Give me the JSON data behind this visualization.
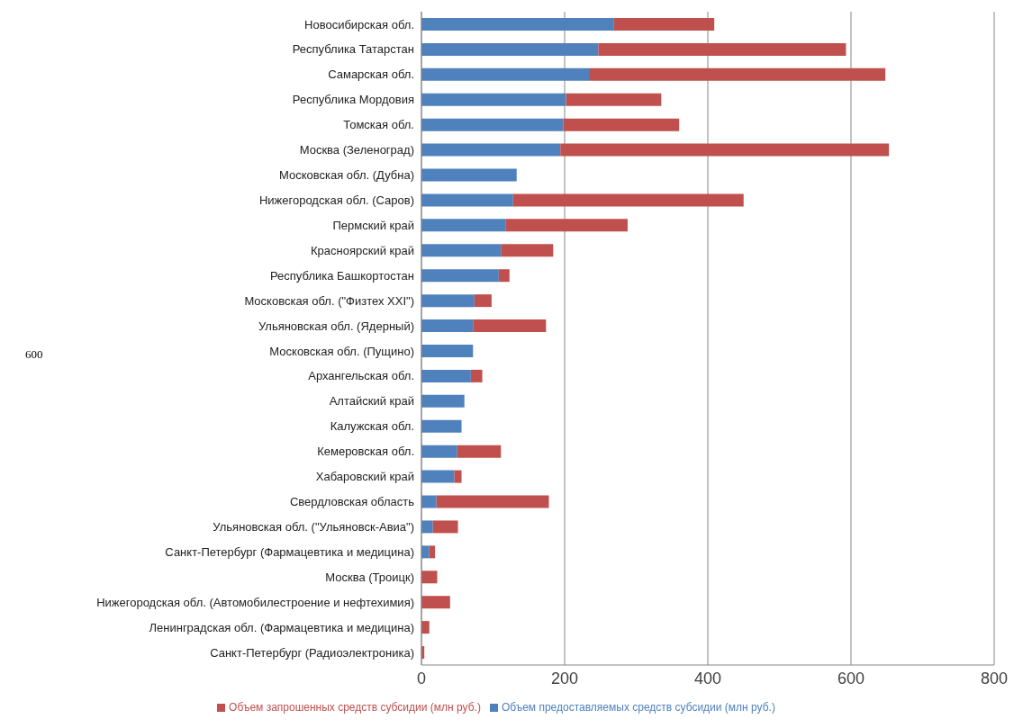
{
  "chart_data": {
    "type": "bar",
    "orientation": "horizontal",
    "stacked": true,
    "categories": [
      "Новосибирская обл.",
      "Республика Татарстан",
      "Самарская обл.",
      "Республика Мордовия",
      "Томская обл.",
      "Москва (Зеленоград)",
      "Московская обл. (Дубна)",
      "Нижегородская обл. (Саров)",
      "Пермский край",
      "Красноярский край",
      "Республика Башкортостан",
      "Московская обл. (\"Физтех XXI\")",
      "Ульяновская обл. (Ядерный)",
      "Московская обл. (Пущино)",
      "Архангельская обл.",
      "Алтайский край",
      "Калужская обл.",
      "Кемеровская обл.",
      "Хабаровский край",
      "Свердловская область",
      "Ульяновская обл. (\"Ульяновск-Авиа\")",
      "Санкт-Петербург (Фармацевтика и медицина)",
      "Москва (Троицк)",
      "Нижегородская обл. (Автомобилестроение и нефтехимия)",
      "Ленинградская обл. (Фармацевтика и медицина)",
      "Санкт-Петербург (Радиоэлектроника)"
    ],
    "series": [
      {
        "name": "Объем предоставляемых средств субсидии (млн руб.)",
        "color": "#4f81bd",
        "values": [
          269,
          247,
          234,
          202,
          198,
          194,
          133,
          128,
          118,
          111,
          108,
          74,
          72,
          72,
          69,
          60,
          56,
          50,
          46,
          21,
          16,
          11,
          null,
          null,
          null,
          null
        ]
      },
      {
        "name": "Объем запрошенных средств субсидии (млн руб.)",
        "color": "#c0504d",
        "values": [
          140,
          346,
          414,
          133,
          162,
          459,
          null,
          322,
          170,
          73,
          15,
          24,
          102,
          null,
          16,
          null,
          null,
          61,
          10,
          157,
          35,
          8,
          22,
          40,
          11,
          4
        ]
      }
    ],
    "xlim": [
      0,
      800
    ],
    "xticks": [
      0,
      200,
      400,
      600,
      800
    ],
    "grid": "x",
    "legend": "bottom",
    "annotations": [
      "600"
    ]
  }
}
